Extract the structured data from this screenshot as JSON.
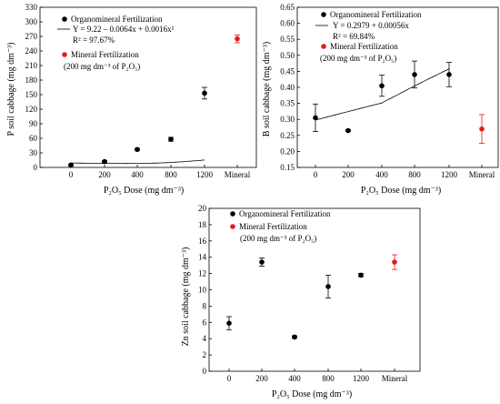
{
  "chart_data": [
    {
      "type": "scatter",
      "ylabel": "P soil cabbage  (mg dm⁻³)",
      "xlabel": "P₂O₅ Dose (mg dm⁻³)",
      "categories": [
        "0",
        "200",
        "400",
        "800",
        "1200",
        "Mineral"
      ],
      "yticks": [
        "0",
        "30",
        "60",
        "90",
        "120",
        "150",
        "180",
        "210",
        "240",
        "270",
        "300",
        "330"
      ],
      "ylim": [
        0,
        330
      ],
      "series": [
        {
          "name": "Organomineral Fertilization",
          "color": "#000000",
          "points": [
            {
              "x": "0",
              "y": 5,
              "err": 2
            },
            {
              "x": "200",
              "y": 12,
              "err": 2
            },
            {
              "x": "400",
              "y": 37,
              "err": 2
            },
            {
              "x": "800",
              "y": 58,
              "err": 4
            },
            {
              "x": "1200",
              "y": 153,
              "err": 12
            }
          ]
        },
        {
          "name": "Mineral Fertilization",
          "subname": "(200 mg dm⁻³ of P₂O₅)",
          "color": "#e31a1c",
          "points": [
            {
              "x": "Mineral",
              "y": 265,
              "err": 8
            }
          ]
        }
      ],
      "fit": {
        "type": "quadratic",
        "coef": [
          9.22,
          -0.0064,
          0.0016
        ],
        "equation": "Y = 9.22 – 0.0064x + 0.0016x²",
        "r2": "R² = 97.67%"
      },
      "legend_position": "top-left"
    },
    {
      "type": "scatter",
      "ylabel": "B soil cabbage  (mg dm⁻³)",
      "xlabel": "P₂O₅ Dose (mg dm⁻³)",
      "categories": [
        "0",
        "200",
        "400",
        "800",
        "1200",
        "Mineral"
      ],
      "yticks": [
        "0.15",
        "0.20",
        "0.25",
        "0.30",
        "0.35",
        "0.40",
        "0.45",
        "0.50",
        "0.55",
        "0.60",
        "0.65"
      ],
      "ylim": [
        0.15,
        0.65
      ],
      "series": [
        {
          "name": "Organomineral Fertilization",
          "color": "#000000",
          "points": [
            {
              "x": "0",
              "y": 0.305,
              "err": 0.043
            },
            {
              "x": "200",
              "y": 0.265,
              "err": 0.003
            },
            {
              "x": "400",
              "y": 0.405,
              "err": 0.033
            },
            {
              "x": "800",
              "y": 0.44,
              "err": 0.042
            },
            {
              "x": "1200",
              "y": 0.44,
              "err": 0.038
            }
          ]
        },
        {
          "name": "Mineral Fertilization",
          "subname": "(200 mg dm⁻³  of  P₂O₅)",
          "color": "#e31a1c",
          "points": [
            {
              "x": "Mineral",
              "y": 0.27,
              "err": 0.045
            }
          ]
        }
      ],
      "fit": {
        "type": "linear",
        "coef": [
          0.2979,
          0.00056
        ],
        "equation": "Y = 0.2979 + 0.00056x",
        "r2": "R² = 69.84%"
      },
      "legend_position": "top-left"
    },
    {
      "type": "scatter",
      "ylabel": "Zn soil cabbage  (mg dm⁻³)",
      "xlabel": "P₂O₅ Dose (mg dm⁻³)",
      "categories": [
        "0",
        "200",
        "400",
        "800",
        "1200",
        "Mineral"
      ],
      "yticks": [
        "0",
        "2",
        "4",
        "6",
        "8",
        "10",
        "12",
        "14",
        "16",
        "18",
        "20"
      ],
      "ylim": [
        0,
        20
      ],
      "series": [
        {
          "name": "Organomineral Fertilization",
          "color": "#000000",
          "points": [
            {
              "x": "0",
              "y": 5.9,
              "err": 0.8
            },
            {
              "x": "200",
              "y": 13.4,
              "err": 0.5
            },
            {
              "x": "400",
              "y": 4.2,
              "err": 0.15
            },
            {
              "x": "800",
              "y": 10.4,
              "err": 1.4
            },
            {
              "x": "1200",
              "y": 11.8,
              "err": 0.2
            }
          ]
        },
        {
          "name": "Mineral Fertilization",
          "subname": "(200 mg dm⁻³  of  P₂O₅)",
          "color": "#e31a1c",
          "points": [
            {
              "x": "Mineral",
              "y": 13.4,
              "err": 0.9
            }
          ]
        }
      ],
      "legend_position": "top-left"
    }
  ]
}
